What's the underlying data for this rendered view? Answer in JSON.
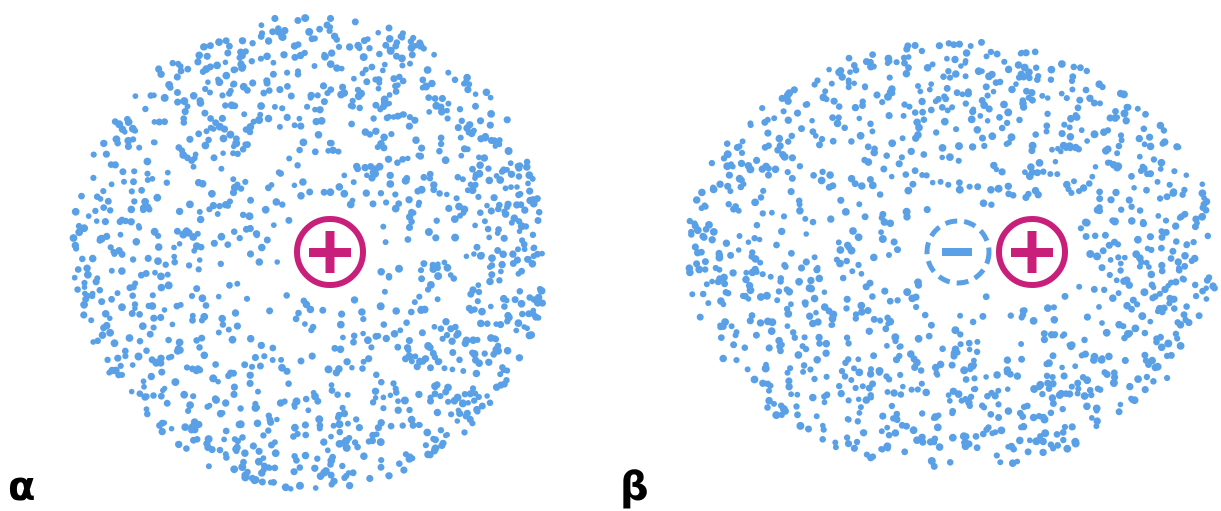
{
  "panels": [
    {
      "label": "α"
    },
    {
      "label": "β"
    }
  ]
}
